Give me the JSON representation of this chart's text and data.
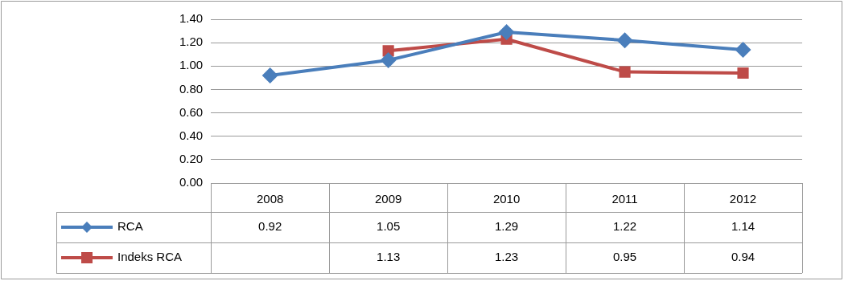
{
  "chart_data": {
    "type": "line",
    "categories": [
      "2008",
      "2009",
      "2010",
      "2011",
      "2012"
    ],
    "series": [
      {
        "name": "RCA",
        "color": "#4a7ebb",
        "values": [
          0.92,
          1.05,
          1.29,
          1.22,
          1.14
        ],
        "marker": "diamond"
      },
      {
        "name": "Indeks RCA",
        "color": "#be4b48",
        "values": [
          null,
          1.13,
          1.23,
          0.95,
          0.94
        ],
        "marker": "square"
      }
    ],
    "ylim": [
      0,
      1.4
    ],
    "yticks": [
      {
        "value": 0,
        "label": "0.00"
      },
      {
        "value": 0.2,
        "label": "0.20"
      },
      {
        "value": 0.4,
        "label": "0.40"
      },
      {
        "value": 0.6,
        "label": "0.60"
      },
      {
        "value": 0.8,
        "label": "0.80"
      },
      {
        "value": 1,
        "label": "1.00"
      },
      {
        "value": 1.2,
        "label": "1.20"
      },
      {
        "value": 1.4,
        "label": "1.40"
      }
    ],
    "grid": "y",
    "legend": "bottom",
    "data_labels": true,
    "line_style": "solid"
  }
}
